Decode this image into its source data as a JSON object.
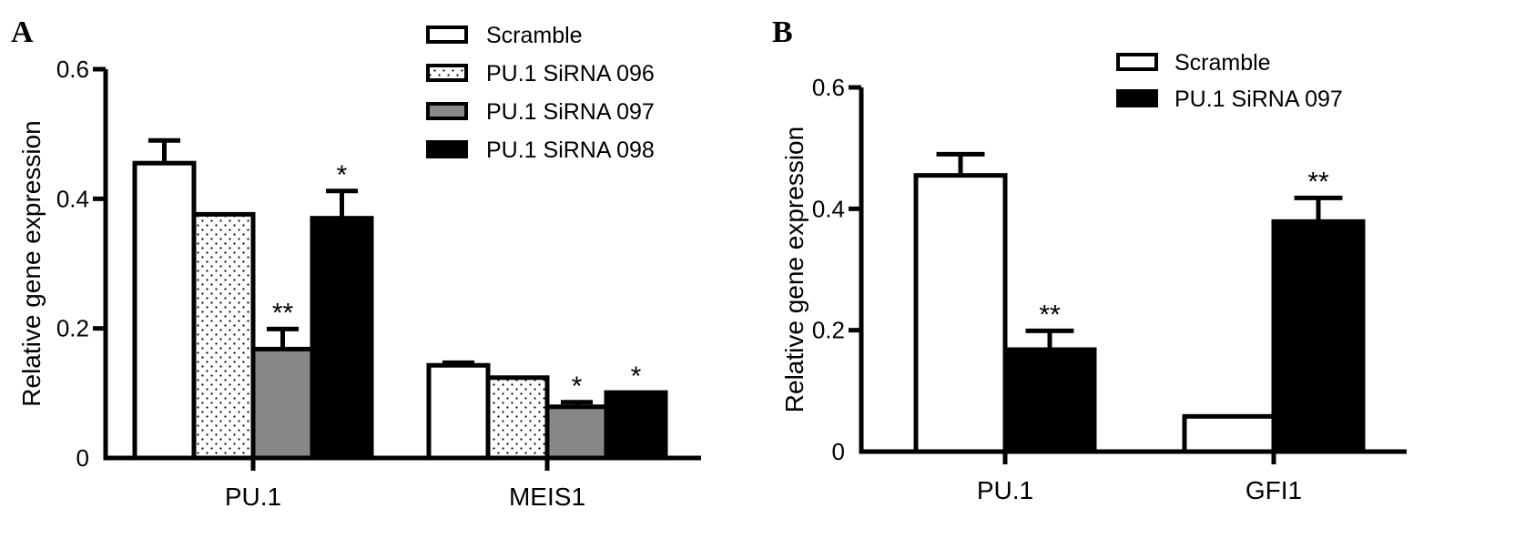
{
  "chart_data": [
    {
      "type": "bar",
      "panel": "A",
      "ylabel": "Relative gene expression",
      "ylim": [
        0,
        0.6
      ],
      "yticks": [
        "0",
        "0.2",
        "0.4",
        "0.6"
      ],
      "categories": [
        "PU.1",
        "MEIS1"
      ],
      "series": [
        {
          "name": "Scramble",
          "values": [
            0.455,
            0.143
          ],
          "errors": [
            0.035,
            0.004
          ],
          "significance": [
            "",
            ""
          ],
          "fill": "#ffffff",
          "pattern": "none"
        },
        {
          "name": "PU.1 SiRNA 096",
          "values": [
            0.376,
            0.124
          ],
          "errors": [
            0.002,
            0.002
          ],
          "significance": [
            "",
            ""
          ],
          "fill": "#ffffff",
          "pattern": "dots"
        },
        {
          "name": "PU.1 SiRNA 097",
          "values": [
            0.168,
            0.079
          ],
          "errors": [
            0.031,
            0.007
          ],
          "significance": [
            "**",
            "*"
          ],
          "fill": "#888888",
          "pattern": "none"
        },
        {
          "name": "PU.1 SiRNA 098",
          "values": [
            0.37,
            0.101
          ],
          "errors": [
            0.042,
            0.002
          ],
          "significance": [
            "*",
            "*"
          ],
          "fill": "#000000",
          "pattern": "none"
        }
      ],
      "legend_position": "top-right",
      "grid": false
    },
    {
      "type": "bar",
      "panel": "B",
      "ylabel": "Relative gene expression",
      "ylim": [
        0,
        0.6
      ],
      "yticks": [
        "0",
        "0.2",
        "0.4",
        "0.6"
      ],
      "categories": [
        "PU.1",
        "GFI1"
      ],
      "series": [
        {
          "name": "Scramble",
          "values": [
            0.455,
            0.058
          ],
          "errors": [
            0.035,
            0.001
          ],
          "significance": [
            "",
            ""
          ],
          "fill": "#ffffff",
          "pattern": "none"
        },
        {
          "name": "PU.1 SiRNA 097",
          "values": [
            0.168,
            0.379
          ],
          "errors": [
            0.031,
            0.039
          ],
          "significance": [
            "**",
            "**"
          ],
          "fill": "#000000",
          "pattern": "none"
        }
      ],
      "legend_position": "top-right",
      "grid": false
    }
  ]
}
